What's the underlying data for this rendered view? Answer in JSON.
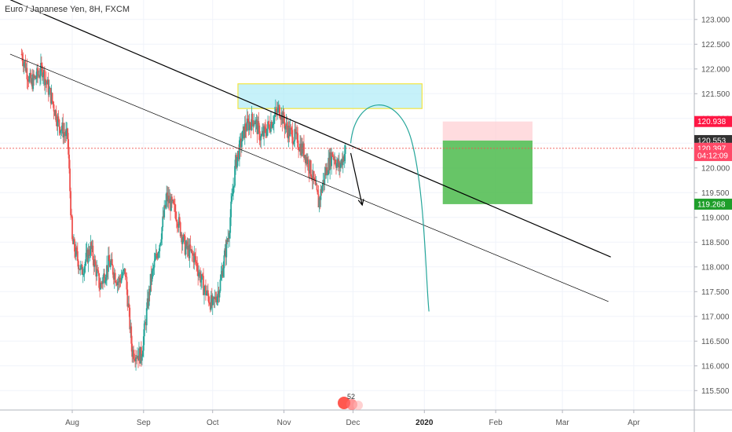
{
  "header": {
    "symbol": "Euro / Japanese Yen, 8H, FXCM"
  },
  "price_tags": [
    {
      "label": "120.938",
      "value": 120.938,
      "bg": "#ff1744",
      "fg": "#ffffff"
    },
    {
      "label": "120.553",
      "value": 120.553,
      "bg": "#333333",
      "fg": "#ffffff"
    },
    {
      "label": "120.397",
      "value": 120.397,
      "bg": "#ff4a68",
      "fg": "#ffffff"
    },
    {
      "label": "04:12:09",
      "value": 120.25,
      "bg": "#ff4a68",
      "fg": "#ffffff"
    },
    {
      "label": "119.268",
      "value": 119.268,
      "bg": "#1e9e2a",
      "fg": "#ffffff"
    }
  ],
  "logo": {
    "text": "52"
  },
  "colors": {
    "up": "#26a69a",
    "down": "#ef5350",
    "trend": "#000000",
    "target_zone": "#4cbb4c",
    "stop_zone": "#ffcdd2",
    "supply_zone": "#b3ecf7",
    "supply_border": "#f4e542",
    "curve": "#26a69a"
  },
  "chart_data": {
    "type": "candlestick",
    "title": "Euro / Japanese Yen, 8H, FXCM",
    "y_axis": {
      "range": [
        115.25,
        123.4
      ],
      "ticks": [
        "115.500",
        "116.000",
        "116.500",
        "117.000",
        "117.500",
        "118.000",
        "118.500",
        "119.000",
        "119.500",
        "120.000",
        "120.500",
        "121.000",
        "121.500",
        "122.000",
        "122.500",
        "123.000"
      ],
      "position": "right"
    },
    "x_axis": {
      "labels": [
        "Aug",
        "Sep",
        "Oct",
        "Nov",
        "Dec",
        "2020",
        "Feb",
        "Mar",
        "Apr"
      ],
      "bold": [
        "2020"
      ]
    },
    "last_price": 120.397,
    "price_path": [
      [
        "Jul 10",
        122.3
      ],
      [
        "Jul 14",
        121.7
      ],
      [
        "Jul 19",
        122.0
      ],
      [
        "Jul 23",
        121.4
      ],
      [
        "Jul 26",
        120.9
      ],
      [
        "Jul 30",
        120.6
      ],
      [
        "Aug 1",
        118.5
      ],
      [
        "Aug 5",
        117.9
      ],
      [
        "Aug 9",
        118.4
      ],
      [
        "Aug 13",
        117.6
      ],
      [
        "Aug 17",
        118.1
      ],
      [
        "Aug 21",
        117.7
      ],
      [
        "Aug 24",
        117.9
      ],
      [
        "Aug 27",
        116.3
      ],
      [
        "Aug 31",
        116.2
      ],
      [
        "Sep 4",
        117.7
      ],
      [
        "Sep 8",
        118.5
      ],
      [
        "Sep 11",
        119.4
      ],
      [
        "Sep 15",
        119.1
      ],
      [
        "Sep 19",
        118.4
      ],
      [
        "Sep 23",
        118.2
      ],
      [
        "Sep 27",
        117.6
      ],
      [
        "Oct 1",
        117.2
      ],
      [
        "Oct 4",
        117.6
      ],
      [
        "Oct 8",
        118.7
      ],
      [
        "Oct 11",
        120.1
      ],
      [
        "Oct 15",
        120.8
      ],
      [
        "Oct 19",
        121.0
      ],
      [
        "Oct 22",
        120.6
      ],
      [
        "Oct 26",
        120.9
      ],
      [
        "Oct 30",
        121.2
      ],
      [
        "Nov 2",
        120.8
      ],
      [
        "Nov 6",
        120.6
      ],
      [
        "Nov 10",
        120.3
      ],
      [
        "Nov 13",
        119.9
      ],
      [
        "Nov 16",
        119.3
      ],
      [
        "Nov 19",
        119.9
      ],
      [
        "Nov 22",
        120.3
      ],
      [
        "Nov 25",
        120.0
      ],
      [
        "Nov 28",
        120.4
      ]
    ],
    "drawings": [
      {
        "type": "trendline",
        "from": [
          "Jul 5",
          123.4
        ],
        "to": [
          "Mar 22",
          118.2
        ]
      },
      {
        "type": "trendline",
        "from": [
          "Jul 5",
          122.3
        ],
        "to": [
          "Mar 21",
          117.3
        ]
      },
      {
        "type": "rectangle",
        "name": "supply-zone",
        "x": [
          "Oct 12",
          "Dec 31"
        ],
        "y": [
          121.2,
          121.7
        ]
      },
      {
        "type": "rectangle",
        "name": "stop-zone",
        "x": [
          "Jan 9",
          "Feb 17"
        ],
        "y": [
          120.553,
          120.938
        ]
      },
      {
        "type": "rectangle",
        "name": "target-zone",
        "x": [
          "Jan 9",
          "Feb 17"
        ],
        "y": [
          119.268,
          120.553
        ]
      },
      {
        "type": "arrow",
        "from": [
          "Nov 30",
          120.3
        ],
        "to": [
          "Dec 5",
          119.25
        ]
      },
      {
        "type": "arc",
        "from": [
          "Nov 30",
          120.5
        ],
        "peak": [
          "Dec 11",
          121.2
        ],
        "to": [
          "Jan 3",
          117.1
        ]
      }
    ]
  }
}
